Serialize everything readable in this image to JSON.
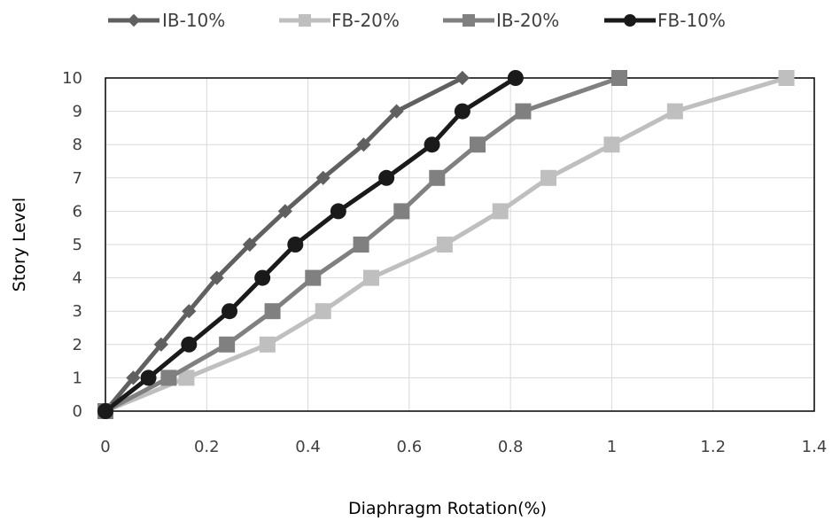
{
  "chart_data": {
    "type": "line",
    "title": "",
    "xlabel": "Diaphragm Rotation(%)",
    "ylabel": "Story Level",
    "xlim": [
      0,
      1.4
    ],
    "ylim": [
      0,
      10
    ],
    "xticks": [
      "0",
      "0.2",
      "0.4",
      "0.6",
      "0.8",
      "1",
      "1.2",
      "1.4"
    ],
    "yticks": [
      "0",
      "1",
      "2",
      "3",
      "4",
      "5",
      "6",
      "7",
      "8",
      "9",
      "10"
    ],
    "grid": "on",
    "legend_position": "top",
    "series": [
      {
        "name": "IB-10%",
        "color": "#606060",
        "marker": "diamond",
        "x": [
          0,
          0.055,
          0.11,
          0.165,
          0.22,
          0.285,
          0.355,
          0.43,
          0.51,
          0.575,
          0.705
        ],
        "y": [
          0,
          1,
          2,
          3,
          4,
          5,
          6,
          7,
          8,
          9,
          10
        ]
      },
      {
        "name": "FB-20%",
        "color": "#bfbfbf",
        "marker": "square",
        "x": [
          0,
          0.16,
          0.32,
          0.43,
          0.525,
          0.67,
          0.78,
          0.875,
          1.0,
          1.125,
          1.345
        ],
        "y": [
          0,
          1,
          2,
          3,
          4,
          5,
          6,
          7,
          8,
          9,
          10
        ]
      },
      {
        "name": "IB-20%",
        "color": "#808080",
        "marker": "square",
        "x": [
          0,
          0.125,
          0.24,
          0.33,
          0.41,
          0.505,
          0.585,
          0.655,
          0.735,
          0.825,
          1.015
        ],
        "y": [
          0,
          1,
          2,
          3,
          4,
          5,
          6,
          7,
          8,
          9,
          10
        ]
      },
      {
        "name": "FB-10%",
        "color": "#1a1a1a",
        "marker": "circle",
        "x": [
          0,
          0.085,
          0.165,
          0.245,
          0.31,
          0.375,
          0.46,
          0.555,
          0.645,
          0.705,
          0.81
        ],
        "y": [
          0,
          1,
          2,
          3,
          4,
          5,
          6,
          7,
          8,
          9,
          10
        ]
      }
    ]
  }
}
